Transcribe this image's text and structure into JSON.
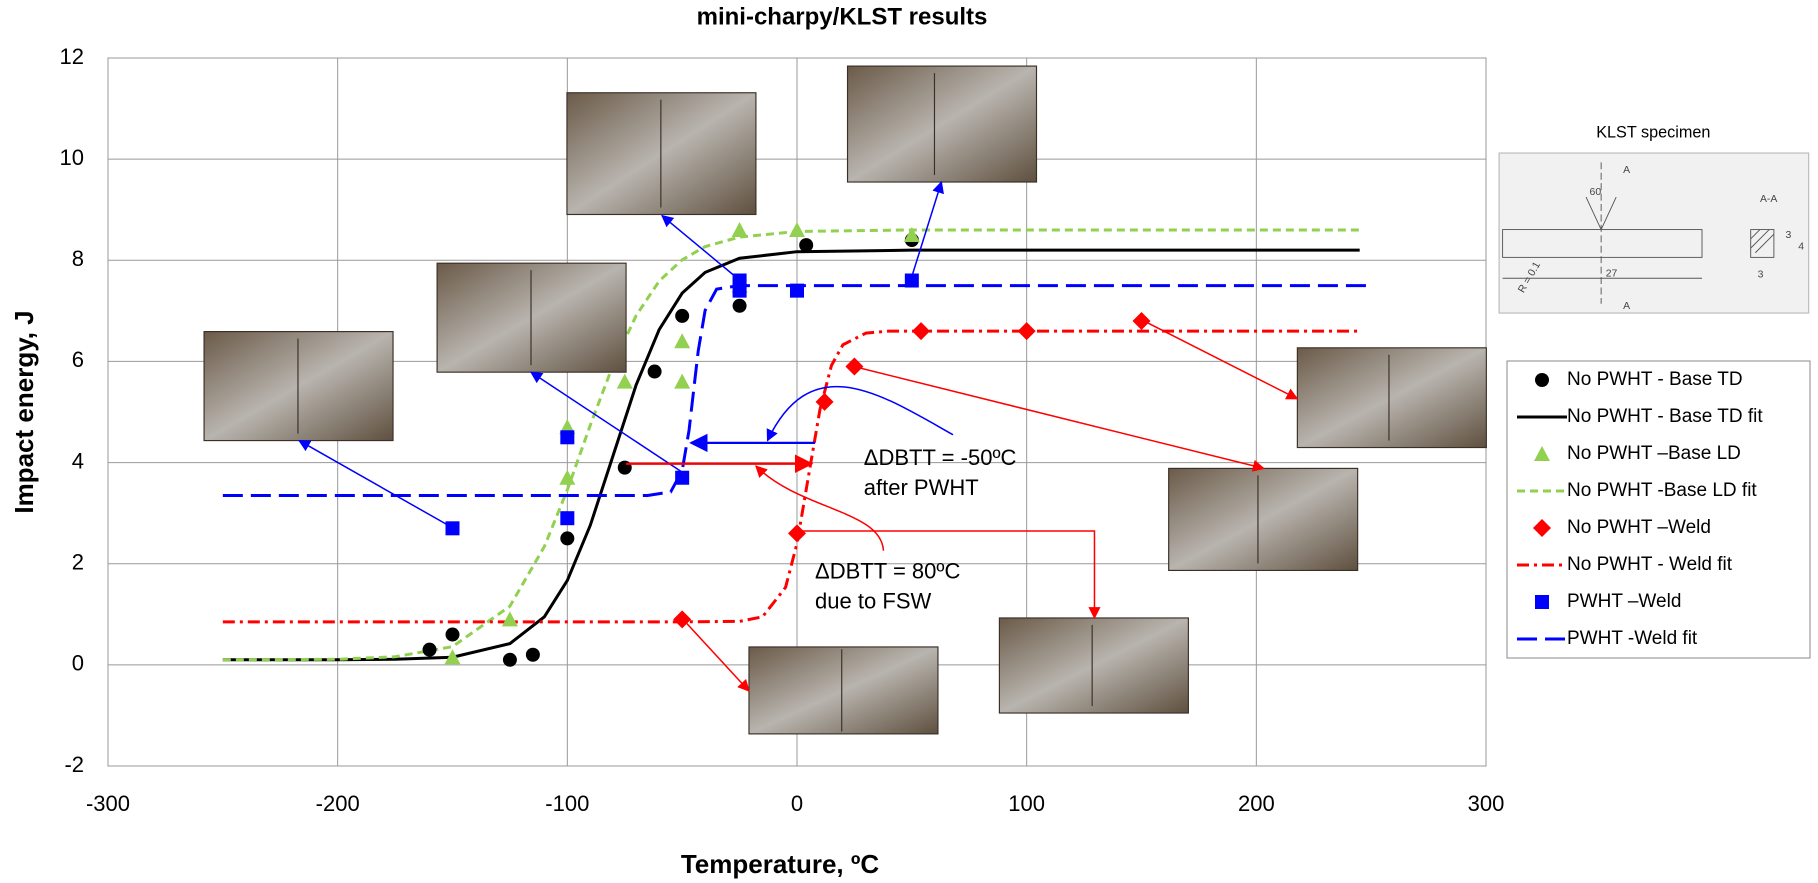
{
  "chart_data": {
    "type": "scatter",
    "title": "mini-charpy/KLST results",
    "x_label": "Temperature, ºC",
    "y_label": "Impact energy, J",
    "xlim": [
      -300,
      300
    ],
    "ylim": [
      -2,
      12
    ],
    "xticks": [
      -300,
      -200,
      -100,
      0,
      100,
      200,
      300
    ],
    "yticks": [
      -2,
      0,
      2,
      4,
      6,
      8,
      10,
      12
    ],
    "grid": true,
    "legend": "right",
    "series": [
      {
        "name": "No PWHT - Base TD",
        "color": "#000000",
        "kind": "marker",
        "marker": "circle",
        "x": [
          -160,
          -150,
          -125,
          -115,
          -100,
          -75,
          -62,
          -50,
          -25,
          -25,
          4,
          50
        ],
        "values": [
          0.3,
          0.6,
          0.1,
          0.2,
          2.5,
          3.9,
          5.8,
          6.9,
          7.1,
          7.6,
          8.3,
          8.4
        ]
      },
      {
        "name": "No PWHT - Base TD fit",
        "color": "#000000",
        "kind": "line",
        "dash": "solid",
        "x": [
          -250,
          -200,
          -175,
          -150,
          -125,
          -110,
          -100,
          -90,
          -80,
          -70,
          -60,
          -50,
          -40,
          -25,
          0,
          50,
          100,
          150,
          200,
          245
        ],
        "values": [
          0.1,
          0.1,
          0.11,
          0.15,
          0.42,
          0.95,
          1.67,
          2.76,
          4.15,
          5.54,
          6.63,
          7.35,
          7.76,
          8.04,
          8.17,
          8.2,
          8.2,
          8.2,
          8.2,
          8.2
        ]
      },
      {
        "name": "No PWHT –Base LD",
        "color": "#92d050",
        "kind": "marker",
        "marker": "triangle",
        "x": [
          -150,
          -125,
          -100,
          -100,
          -75,
          -50,
          -50,
          -25,
          -25,
          0,
          50
        ],
        "values": [
          0.15,
          0.9,
          4.7,
          3.7,
          5.6,
          6.4,
          5.6,
          8.6,
          7.5,
          8.6,
          8.5
        ]
      },
      {
        "name": "No PWHT -Base LD fit",
        "color": "#92d050",
        "kind": "line",
        "dash": "dash",
        "x": [
          -250,
          -200,
          -175,
          -150,
          -125,
          -110,
          -100,
          -90,
          -80,
          -70,
          -60,
          -50,
          -40,
          -25,
          0,
          50,
          100,
          150,
          200,
          245
        ],
        "values": [
          0.1,
          0.11,
          0.16,
          0.36,
          1.16,
          2.34,
          3.46,
          4.74,
          5.94,
          6.91,
          7.59,
          8.01,
          8.27,
          8.46,
          8.57,
          8.6,
          8.6,
          8.6,
          8.6,
          8.6
        ]
      },
      {
        "name": "No PWHT –Weld",
        "color": "#ff0000",
        "kind": "marker",
        "marker": "diamond",
        "x": [
          -50,
          0,
          12,
          25,
          54,
          100,
          150
        ],
        "values": [
          0.9,
          2.6,
          5.2,
          5.9,
          6.6,
          6.6,
          6.8
        ]
      },
      {
        "name": "No PWHT - Weld fit",
        "color": "#ff0000",
        "kind": "line",
        "dash": "dashdot",
        "x": [
          -250,
          -50,
          -25,
          -15,
          -5,
          0,
          5,
          10,
          15,
          20,
          30,
          40,
          100,
          245
        ],
        "values": [
          0.85,
          0.85,
          0.86,
          0.95,
          1.53,
          2.4,
          3.73,
          5.05,
          5.92,
          6.33,
          6.56,
          6.6,
          6.6,
          6.6
        ]
      },
      {
        "name": "PWHT –Weld",
        "color": "#0000ff",
        "kind": "marker",
        "marker": "square",
        "x": [
          -150,
          -100,
          -100,
          -50,
          -25,
          -25,
          0,
          50
        ],
        "values": [
          2.7,
          4.5,
          2.9,
          3.7,
          7.6,
          7.4,
          7.4,
          7.6
        ]
      },
      {
        "name": "PWHT -Weld fit",
        "color": "#0000ff",
        "kind": "line",
        "dash": "longdash",
        "x": [
          -250,
          -65,
          -55,
          -50,
          -47,
          -45,
          -43,
          -40,
          -35,
          -25,
          250
        ],
        "values": [
          3.35,
          3.35,
          3.42,
          3.84,
          4.64,
          5.43,
          6.21,
          7.01,
          7.43,
          7.5,
          7.5
        ]
      }
    ],
    "annotations": [
      "ΔDBTT = -50ºC",
      "after PWHT",
      "ΔDBTT = 80ºC",
      "due to FSW"
    ]
  },
  "inset": {
    "title": "KLST specimen",
    "labels": [
      "60",
      "A",
      "A-A",
      "27",
      "3",
      "4",
      "3",
      "R = 0.1",
      "A"
    ]
  }
}
